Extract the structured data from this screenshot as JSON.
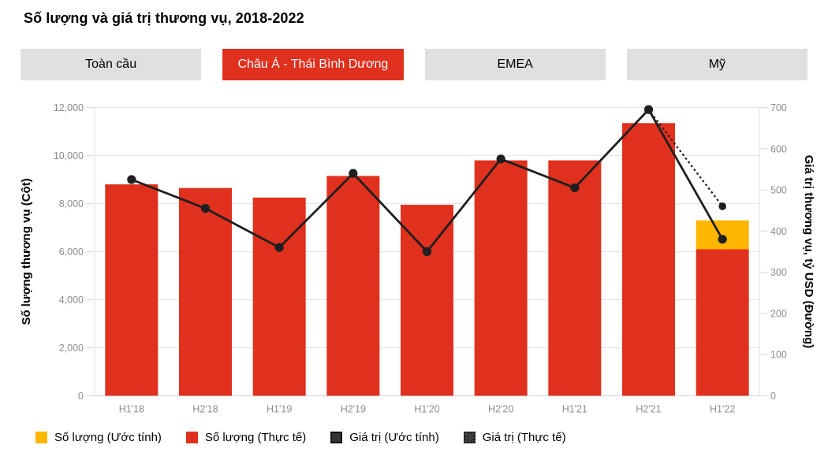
{
  "title": "Số lượng và giá trị thương vụ, 2018-2022",
  "tabs": [
    {
      "label": "Toàn cầu",
      "selected": false
    },
    {
      "label": "Châu Á - Thái Bình Dương",
      "selected": true
    },
    {
      "label": "EMEA",
      "selected": false
    },
    {
      "label": "Mỹ",
      "selected": false
    }
  ],
  "legend": [
    {
      "label": "Số lượng (Ước tính)",
      "swatch": "orange-solid"
    },
    {
      "label": "Số lượng (Thực tế)",
      "swatch": "red-solid"
    },
    {
      "label": "Giá trị (Ước tính)",
      "swatch": "dark-solid"
    },
    {
      "label": "Giá trị (Thực tế)",
      "swatch": "dark-dotted"
    }
  ],
  "colors": {
    "bar_actual": "#e0301e",
    "bar_estimate": "#ffb600",
    "line": "#1f1f1f",
    "grid": "#e7e7e7",
    "axis_border": "#dcdcdc",
    "tick_text": "#8c8c8c",
    "tab_selected_bg": "#e0301e",
    "tab_bg": "#e0e0e0"
  },
  "chart_data": {
    "type": "combo-bar-line",
    "title": "Số lượng và giá trị thương vụ, 2018-2022",
    "categories": [
      "H1'18",
      "H2'18",
      "H1'19",
      "H2'19",
      "H1'20",
      "H2'20",
      "H1'21",
      "H2'21",
      "H1'22"
    ],
    "series": [
      {
        "name": "Số lượng (Thực tế)",
        "type": "bar",
        "axis": "left",
        "color": "#e0301e",
        "values": [
          8800,
          8650,
          8250,
          9150,
          7950,
          9800,
          9800,
          11350,
          6100
        ]
      },
      {
        "name": "Số lượng (Ước tính)",
        "type": "bar-stacked-top",
        "axis": "left",
        "color": "#ffb600",
        "values": [
          0,
          0,
          0,
          0,
          0,
          0,
          0,
          0,
          1200
        ]
      },
      {
        "name": "Giá trị (Ước tính)",
        "type": "line",
        "style": "solid",
        "axis": "right",
        "values": [
          525,
          455,
          360,
          540,
          350,
          575,
          505,
          695,
          380
        ]
      },
      {
        "name": "Giá trị (Thực tế)",
        "type": "line",
        "style": "dotted",
        "axis": "right",
        "values": [
          null,
          null,
          null,
          null,
          null,
          null,
          null,
          695,
          460
        ]
      }
    ],
    "y_left": {
      "title": "Số lượng thương vụ (Cột)",
      "min": 0,
      "max": 12000,
      "step": 2000
    },
    "y_right": {
      "title": "Giá trị thương vụ, tỷ USD (Đường)",
      "min": 0,
      "max": 700,
      "step": 100
    },
    "grid": true,
    "legend_position": "bottom"
  }
}
